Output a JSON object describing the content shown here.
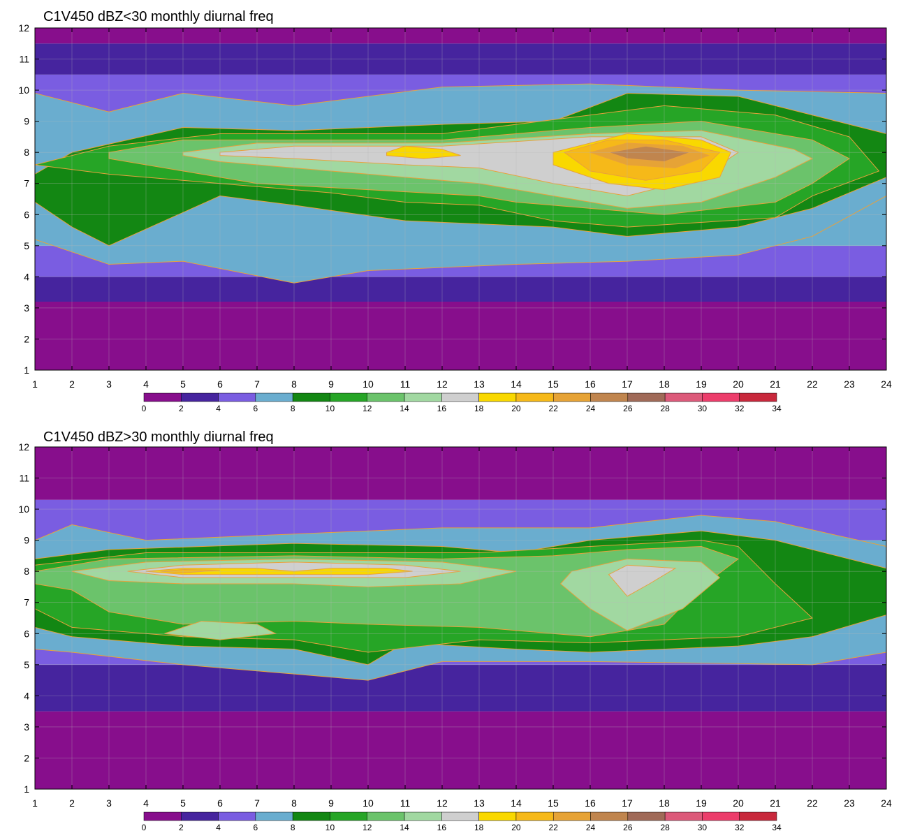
{
  "chart_data": [
    {
      "type": "heatmap",
      "title": "C1V450 dBZ<30 monthly diurnal freq",
      "x_ticks": [
        1,
        2,
        3,
        4,
        5,
        6,
        7,
        8,
        9,
        10,
        11,
        12,
        13,
        14,
        15,
        16,
        17,
        18,
        19,
        20,
        21,
        22,
        23,
        24
      ],
      "y_ticks": [
        1,
        2,
        3,
        4,
        5,
        6,
        7,
        8,
        9,
        10,
        11,
        12
      ],
      "xlim": [
        1,
        24
      ],
      "ylim": [
        1,
        12
      ],
      "grid": true,
      "colorbar_levels": [
        0,
        2,
        4,
        6,
        8,
        10,
        12,
        14,
        16,
        18,
        20,
        22,
        24,
        26,
        28,
        30,
        32,
        34
      ],
      "features": [
        {
          "level": 8,
          "points": [
            [
              1,
              7.3
            ],
            [
              2,
              8
            ],
            [
              5,
              8.8
            ],
            [
              8,
              8.7
            ],
            [
              12,
              8.9
            ],
            [
              15,
              9
            ],
            [
              17,
              9.9
            ],
            [
              20,
              9.8
            ],
            [
              24,
              8.6
            ],
            [
              24,
              7.2
            ],
            [
              22,
              6.2
            ],
            [
              20,
              5.6
            ],
            [
              17,
              5.3
            ],
            [
              15,
              5.6
            ],
            [
              11,
              5.8
            ],
            [
              8,
              6.3
            ],
            [
              6,
              6.6
            ],
            [
              3,
              5
            ],
            [
              2,
              5.6
            ],
            [
              1,
              6.4
            ]
          ]
        },
        {
          "level": 10,
          "points": [
            [
              1,
              7.6
            ],
            [
              3,
              8.2
            ],
            [
              6,
              8.6
            ],
            [
              12,
              8.6
            ],
            [
              16,
              9.2
            ],
            [
              18,
              9.5
            ],
            [
              21,
              9.2
            ],
            [
              23,
              8.5
            ],
            [
              23.8,
              7.4
            ],
            [
              22,
              6.6
            ],
            [
              21,
              5.9
            ],
            [
              17,
              5.6
            ],
            [
              15,
              5.8
            ],
            [
              13,
              6.3
            ],
            [
              11,
              6.4
            ],
            [
              9,
              6.7
            ],
            [
              6,
              7
            ],
            [
              3,
              7.3
            ],
            [
              1,
              7.6
            ]
          ]
        },
        {
          "level": 12,
          "points": [
            [
              3,
              8
            ],
            [
              5,
              8.4
            ],
            [
              12,
              8.4
            ],
            [
              16,
              8.8
            ],
            [
              19,
              9
            ],
            [
              22,
              8.4
            ],
            [
              23,
              7.8
            ],
            [
              22,
              7
            ],
            [
              21,
              6.4
            ],
            [
              18,
              6
            ],
            [
              16,
              6.2
            ],
            [
              14,
              6.4
            ],
            [
              13,
              6.6
            ],
            [
              10,
              6.8
            ],
            [
              7,
              7
            ],
            [
              5,
              7.4
            ],
            [
              3,
              7.8
            ]
          ]
        },
        {
          "level": 14,
          "points": [
            [
              5,
              8
            ],
            [
              7,
              8.3
            ],
            [
              12,
              8.3
            ],
            [
              16,
              8.6
            ],
            [
              19,
              8.7
            ],
            [
              21.5,
              8.1
            ],
            [
              22,
              7.8
            ],
            [
              21,
              7.2
            ],
            [
              19,
              6.4
            ],
            [
              17,
              6.2
            ],
            [
              15,
              6.6
            ],
            [
              13,
              7
            ],
            [
              11,
              7.2
            ],
            [
              8,
              7.5
            ],
            [
              6,
              7.7
            ],
            [
              5,
              7.9
            ]
          ]
        },
        {
          "level": 16,
          "points": [
            [
              6,
              8
            ],
            [
              8,
              8.2
            ],
            [
              12,
              8.2
            ],
            [
              16,
              8.5
            ],
            [
              19,
              8.5
            ],
            [
              20,
              8
            ],
            [
              19,
              7.2
            ],
            [
              17,
              6.6
            ],
            [
              15,
              7
            ],
            [
              13,
              7.5
            ],
            [
              11,
              7.6
            ],
            [
              8,
              7.8
            ],
            [
              6,
              7.9
            ]
          ]
        },
        {
          "level": 18,
          "points": [
            [
              10.5,
              8
            ],
            [
              11,
              8.2
            ],
            [
              12,
              8.1
            ],
            [
              12.5,
              7.9
            ],
            [
              11.5,
              7.8
            ],
            [
              10.5,
              7.9
            ]
          ]
        },
        {
          "level": 18,
          "points": [
            [
              15,
              8
            ],
            [
              16,
              8.3
            ],
            [
              17,
              8.6
            ],
            [
              19,
              8.4
            ],
            [
              19.8,
              8
            ],
            [
              19.5,
              7.2
            ],
            [
              18,
              6.8
            ],
            [
              16.5,
              7
            ],
            [
              15,
              7.6
            ]
          ]
        },
        {
          "level": 20,
          "points": [
            [
              15.3,
              8
            ],
            [
              16.5,
              8.4
            ],
            [
              18,
              8.4
            ],
            [
              19.5,
              8
            ],
            [
              19,
              7.4
            ],
            [
              17.5,
              7.1
            ],
            [
              16,
              7.4
            ]
          ]
        },
        {
          "level": 22,
          "points": [
            [
              16,
              8
            ],
            [
              17,
              8.3
            ],
            [
              18.5,
              8.2
            ],
            [
              19.2,
              7.9
            ],
            [
              18.3,
              7.5
            ],
            [
              17,
              7.6
            ]
          ]
        },
        {
          "level": 24,
          "points": [
            [
              16.5,
              8
            ],
            [
              17.5,
              8.2
            ],
            [
              18.7,
              8
            ],
            [
              18,
              7.7
            ],
            [
              17,
              7.8
            ]
          ]
        }
      ]
    },
    {
      "type": "heatmap",
      "title": "C1V450 dBZ>30 monthly diurnal freq",
      "x_ticks": [
        1,
        2,
        3,
        4,
        5,
        6,
        7,
        8,
        9,
        10,
        11,
        12,
        13,
        14,
        15,
        16,
        17,
        18,
        19,
        20,
        21,
        22,
        23,
        24
      ],
      "y_ticks": [
        1,
        2,
        3,
        4,
        5,
        6,
        7,
        8,
        9,
        10,
        11,
        12
      ],
      "xlim": [
        1,
        24
      ],
      "ylim": [
        1,
        12
      ],
      "grid": true,
      "colorbar_levels": [
        0,
        2,
        4,
        6,
        8,
        10,
        12,
        14,
        16,
        18,
        20,
        22,
        24,
        26,
        28,
        30,
        32,
        34
      ],
      "features": [
        {
          "level": 8,
          "points": [
            [
              1,
              8.4
            ],
            [
              3,
              8.7
            ],
            [
              8,
              8.9
            ],
            [
              12,
              8.8
            ],
            [
              14,
              8.6
            ],
            [
              16,
              9
            ],
            [
              19,
              9.3
            ],
            [
              21,
              9
            ],
            [
              24,
              8.1
            ],
            [
              24,
              6.6
            ],
            [
              22,
              5.9
            ],
            [
              20,
              5.6
            ],
            [
              16,
              5.4
            ],
            [
              14,
              5.5
            ],
            [
              11,
              5.7
            ],
            [
              10,
              5
            ],
            [
              8,
              5.5
            ],
            [
              5,
              5.6
            ],
            [
              2,
              5.9
            ],
            [
              1,
              6.2
            ]
          ]
        },
        {
          "level": 10,
          "points": [
            [
              1,
              8.2
            ],
            [
              4,
              8.6
            ],
            [
              9,
              8.6
            ],
            [
              13,
              8.6
            ],
            [
              16,
              8.8
            ],
            [
              19,
              9
            ],
            [
              20,
              8.8
            ],
            [
              21,
              7.6
            ],
            [
              22,
              6.5
            ],
            [
              20,
              5.9
            ],
            [
              16,
              5.7
            ],
            [
              13,
              5.8
            ],
            [
              10,
              5.4
            ],
            [
              8,
              5.8
            ],
            [
              5,
              5.9
            ],
            [
              2,
              6.2
            ],
            [
              1,
              6.8
            ],
            [
              1,
              7.6
            ]
          ]
        },
        {
          "level": 12,
          "points": [
            [
              1,
              8
            ],
            [
              3,
              8.4
            ],
            [
              8,
              8.5
            ],
            [
              12,
              8.4
            ],
            [
              15,
              8.5
            ],
            [
              17,
              8.7
            ],
            [
              19,
              8.8
            ],
            [
              20,
              8.4
            ],
            [
              19,
              7.5
            ],
            [
              18,
              6.3
            ],
            [
              16,
              5.9
            ],
            [
              13,
              6.2
            ],
            [
              10,
              6.3
            ],
            [
              8,
              6.4
            ],
            [
              5,
              6.3
            ],
            [
              3,
              6.7
            ],
            [
              2,
              7.4
            ],
            [
              1,
              7.6
            ]
          ]
        },
        {
          "level": 14,
          "points": [
            [
              2,
              8
            ],
            [
              4,
              8.3
            ],
            [
              8,
              8.4
            ],
            [
              12,
              8.3
            ],
            [
              14,
              8
            ],
            [
              12.5,
              7.6
            ],
            [
              10,
              7.5
            ],
            [
              8,
              7.6
            ],
            [
              5,
              7.6
            ],
            [
              3,
              7.7
            ]
          ]
        },
        {
          "level": 14,
          "points": [
            [
              15.5,
              8
            ],
            [
              17,
              8.4
            ],
            [
              19,
              8.3
            ],
            [
              19.5,
              7.8
            ],
            [
              18.5,
              6.8
            ],
            [
              17,
              6.1
            ],
            [
              16,
              6.8
            ],
            [
              15.2,
              7.6
            ]
          ]
        },
        {
          "level": 14,
          "points": [
            [
              4.5,
              6
            ],
            [
              5.5,
              6.4
            ],
            [
              7,
              6.3
            ],
            [
              7.5,
              6
            ],
            [
              6,
              5.8
            ]
          ]
        },
        {
          "level": 16,
          "points": [
            [
              3.5,
              8
            ],
            [
              5,
              8.2
            ],
            [
              8,
              8.3
            ],
            [
              11,
              8.2
            ],
            [
              12.5,
              8
            ],
            [
              11,
              7.8
            ],
            [
              8,
              7.8
            ],
            [
              5,
              7.8
            ]
          ]
        },
        {
          "level": 16,
          "points": [
            [
              16.5,
              7.9
            ],
            [
              17,
              8.2
            ],
            [
              18.3,
              8.1
            ],
            [
              17.6,
              7.6
            ],
            [
              17,
              7.2
            ]
          ]
        },
        {
          "level": 18,
          "points": [
            [
              4,
              8
            ],
            [
              5,
              8.1
            ],
            [
              7,
              8.1
            ],
            [
              8,
              8
            ],
            [
              9,
              8.1
            ],
            [
              10.5,
              8.1
            ],
            [
              11.2,
              8
            ],
            [
              10,
              7.9
            ],
            [
              8,
              7.9
            ],
            [
              5,
              7.9
            ]
          ]
        },
        {
          "level": 20,
          "points": [
            [
              4.4,
              8
            ],
            [
              5,
              8.06
            ],
            [
              6,
              8.04
            ],
            [
              5,
              7.95
            ]
          ]
        }
      ]
    }
  ]
}
